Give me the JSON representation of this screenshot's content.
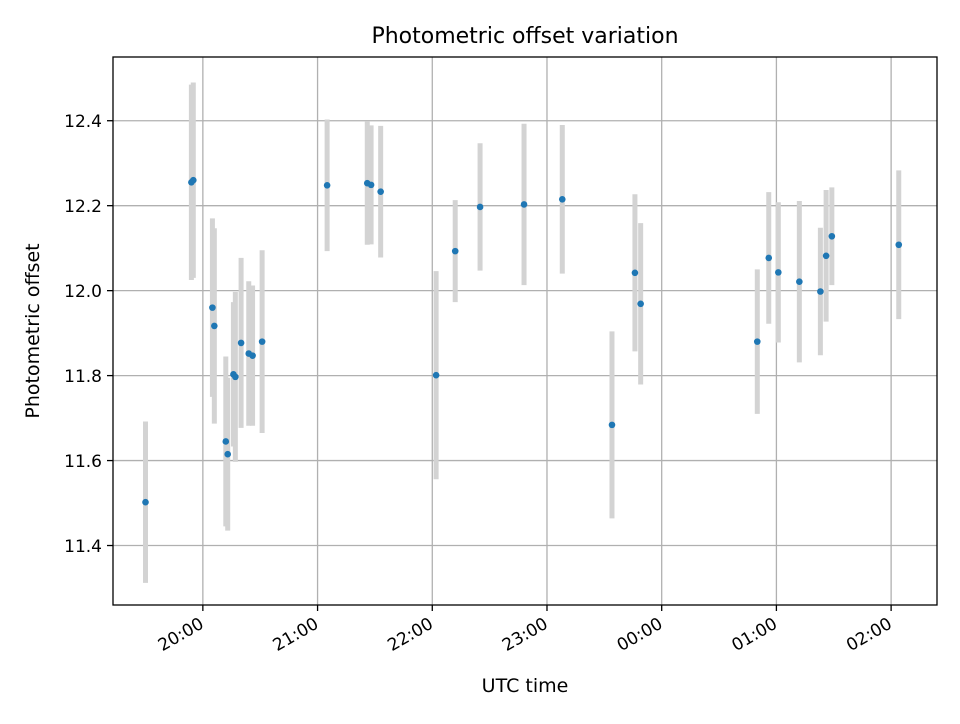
{
  "chart_data": {
    "type": "scatter",
    "title": "Photometric offset variation",
    "xlabel": "UTC time",
    "ylabel": "Photometric offset",
    "grid": true,
    "ylim": [
      11.26,
      12.55
    ],
    "xlim": [
      "19:13",
      "02:24"
    ],
    "yticks": [
      11.4,
      11.6,
      11.8,
      12.0,
      12.2,
      12.4
    ],
    "ytick_labels": [
      "11.4",
      "11.6",
      "11.8",
      "12.0",
      "12.2",
      "12.4"
    ],
    "xticks": [
      "20:00",
      "21:00",
      "22:00",
      "23:00",
      "00:00",
      "01:00",
      "02:00"
    ],
    "xtick_labels": [
      "20:00",
      "21:00",
      "22:00",
      "23:00",
      "00:00",
      "01:00",
      "02:00"
    ],
    "colors": {
      "point": "#1f77b4",
      "errorbar": "#d3d3d3",
      "grid": "#b0b0b0"
    },
    "series": [
      {
        "marker": "point",
        "points": [
          {
            "x": "19:30",
            "y": 11.502,
            "err": 0.19
          },
          {
            "x": "19:54",
            "y": 12.255,
            "err": 0.23
          },
          {
            "x": "19:55",
            "y": 12.26,
            "err": 0.23
          },
          {
            "x": "20:05",
            "y": 11.96,
            "err": 0.21
          },
          {
            "x": "20:06",
            "y": 11.917,
            "err": 0.23
          },
          {
            "x": "20:12",
            "y": 11.645,
            "err": 0.2
          },
          {
            "x": "20:13",
            "y": 11.615,
            "err": 0.18
          },
          {
            "x": "20:16",
            "y": 11.803,
            "err": 0.17
          },
          {
            "x": "20:17",
            "y": 11.797,
            "err": 0.2
          },
          {
            "x": "20:20",
            "y": 11.877,
            "err": 0.2
          },
          {
            "x": "20:24",
            "y": 11.852,
            "err": 0.17
          },
          {
            "x": "20:26",
            "y": 11.847,
            "err": 0.165
          },
          {
            "x": "20:31",
            "y": 11.88,
            "err": 0.215
          },
          {
            "x": "21:05",
            "y": 12.248,
            "err": 0.155
          },
          {
            "x": "21:26",
            "y": 12.253,
            "err": 0.145
          },
          {
            "x": "21:28",
            "y": 12.249,
            "err": 0.14
          },
          {
            "x": "21:33",
            "y": 12.233,
            "err": 0.155
          },
          {
            "x": "22:02",
            "y": 11.801,
            "err": 0.245
          },
          {
            "x": "22:12",
            "y": 12.093,
            "err": 0.12
          },
          {
            "x": "22:25",
            "y": 12.197,
            "err": 0.15
          },
          {
            "x": "22:48",
            "y": 12.203,
            "err": 0.19
          },
          {
            "x": "23:08",
            "y": 12.215,
            "err": 0.175
          },
          {
            "x": "23:34",
            "y": 11.684,
            "err": 0.22
          },
          {
            "x": "23:46",
            "y": 12.042,
            "err": 0.185
          },
          {
            "x": "23:49",
            "y": 11.969,
            "err": 0.19
          },
          {
            "x": "00:50",
            "y": 11.88,
            "err": 0.17
          },
          {
            "x": "00:56",
            "y": 12.077,
            "err": 0.155
          },
          {
            "x": "01:01",
            "y": 12.043,
            "err": 0.165
          },
          {
            "x": "01:12",
            "y": 12.021,
            "err": 0.19
          },
          {
            "x": "01:23",
            "y": 11.998,
            "err": 0.15
          },
          {
            "x": "01:26",
            "y": 12.082,
            "err": 0.155
          },
          {
            "x": "01:29",
            "y": 12.128,
            "err": 0.115
          },
          {
            "x": "02:04",
            "y": 12.108,
            "err": 0.175
          }
        ]
      }
    ]
  }
}
